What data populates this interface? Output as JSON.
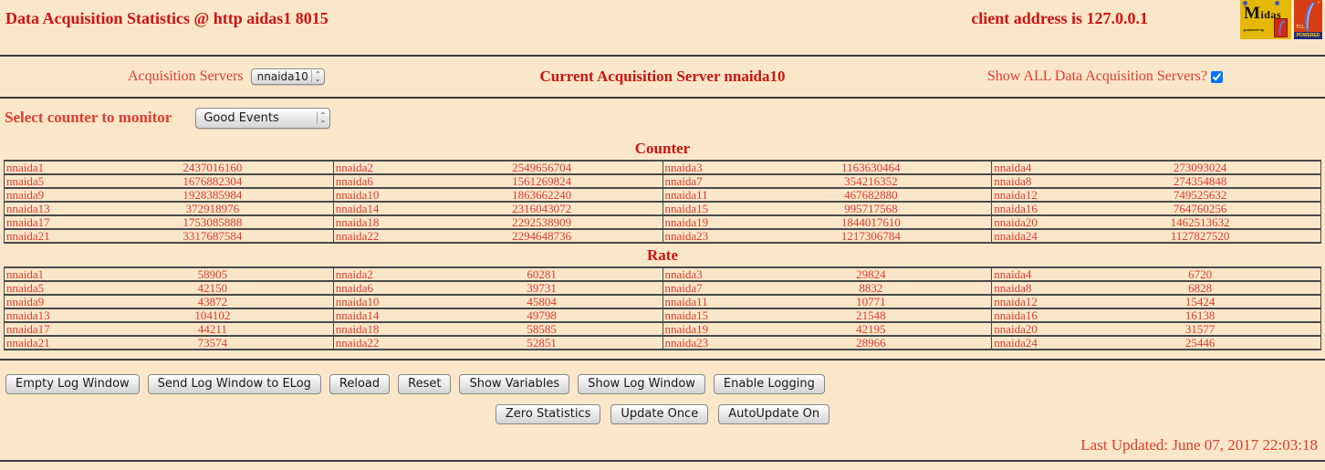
{
  "page": {
    "title": "Data Acquisition Statistics @ http aidas1 8015",
    "client_address": "client address is 127.0.0.1",
    "last_updated": "Last Updated: June 07, 2017 22:03:18"
  },
  "colors": {
    "background": "#fae7c9",
    "heading_red": "#ce1312",
    "text_red": "#e13b30",
    "midas_yellow": "#e5b806",
    "tcl_red": "#d63d12",
    "tcl_band_blue": "#232a7a"
  },
  "logos": {
    "midas_label": "Midas",
    "midas_powered": "powered by",
    "tcl_label": "TCL",
    "tcl_powered": "POWERED",
    "tcl_quotes": "”"
  },
  "acquisition": {
    "servers_label": "Acquisition Servers",
    "server_selected": "nnaida10",
    "current_server_text": "Current Acquisition Server nnaida10",
    "show_all_label": "Show ALL Data Acquisition Servers?",
    "show_all_checked": true
  },
  "counter_select": {
    "label": "Select counter to monitor",
    "selected": "Good Events"
  },
  "counter_section": {
    "title": "Counter",
    "rows": [
      [
        [
          "nnaida1",
          "2437016160"
        ],
        [
          "nnaida2",
          "2549656704"
        ],
        [
          "nnaida3",
          "1163630464"
        ],
        [
          "nnaida4",
          "273093024"
        ]
      ],
      [
        [
          "nnaida5",
          "1676882304"
        ],
        [
          "nnaida6",
          "1561269824"
        ],
        [
          "nnaida7",
          "354216352"
        ],
        [
          "nnaida8",
          "274354848"
        ]
      ],
      [
        [
          "nnaida9",
          "1928385984"
        ],
        [
          "nnaida10",
          "1863662240"
        ],
        [
          "nnaida11",
          "467682880"
        ],
        [
          "nnaida12",
          "749525632"
        ]
      ],
      [
        [
          "nnaida13",
          "372918976"
        ],
        [
          "nnaida14",
          "2316043072"
        ],
        [
          "nnaida15",
          "995717568"
        ],
        [
          "nnaida16",
          "764760256"
        ]
      ],
      [
        [
          "nnaida17",
          "1753085888"
        ],
        [
          "nnaida18",
          "2292538909"
        ],
        [
          "nnaida19",
          "1844017610"
        ],
        [
          "nnaida20",
          "1462513632"
        ]
      ],
      [
        [
          "nnaida21",
          "3317687584"
        ],
        [
          "nnaida22",
          "2294648736"
        ],
        [
          "nnaida23",
          "1217306784"
        ],
        [
          "nnaida24",
          "1127827520"
        ]
      ]
    ]
  },
  "rate_section": {
    "title": "Rate",
    "rows": [
      [
        [
          "nnaida1",
          "58905"
        ],
        [
          "nnaida2",
          "60281"
        ],
        [
          "nnaida3",
          "29824"
        ],
        [
          "nnaida4",
          "6720"
        ]
      ],
      [
        [
          "nnaida5",
          "42150"
        ],
        [
          "nnaida6",
          "39731"
        ],
        [
          "nnaida7",
          "8832"
        ],
        [
          "nnaida8",
          "6828"
        ]
      ],
      [
        [
          "nnaida9",
          "43872"
        ],
        [
          "nnaida10",
          "45804"
        ],
        [
          "nnaida11",
          "10771"
        ],
        [
          "nnaida12",
          "15424"
        ]
      ],
      [
        [
          "nnaida13",
          "104102"
        ],
        [
          "nnaida14",
          "49798"
        ],
        [
          "nnaida15",
          "21548"
        ],
        [
          "nnaida16",
          "16138"
        ]
      ],
      [
        [
          "nnaida17",
          "44211"
        ],
        [
          "nnaida18",
          "58585"
        ],
        [
          "nnaida19",
          "42195"
        ],
        [
          "nnaida20",
          "31577"
        ]
      ],
      [
        [
          "nnaida21",
          "73574"
        ],
        [
          "nnaida22",
          "52851"
        ],
        [
          "nnaida23",
          "28966"
        ],
        [
          "nnaida24",
          "25446"
        ]
      ]
    ]
  },
  "buttons_row1": [
    "Empty Log Window",
    "Send Log Window to ELog",
    "Reload",
    "Reset",
    "Show Variables",
    "Show Log Window",
    "Enable Logging"
  ],
  "buttons_row2": [
    "Zero Statistics",
    "Update Once",
    "AutoUpdate On"
  ]
}
